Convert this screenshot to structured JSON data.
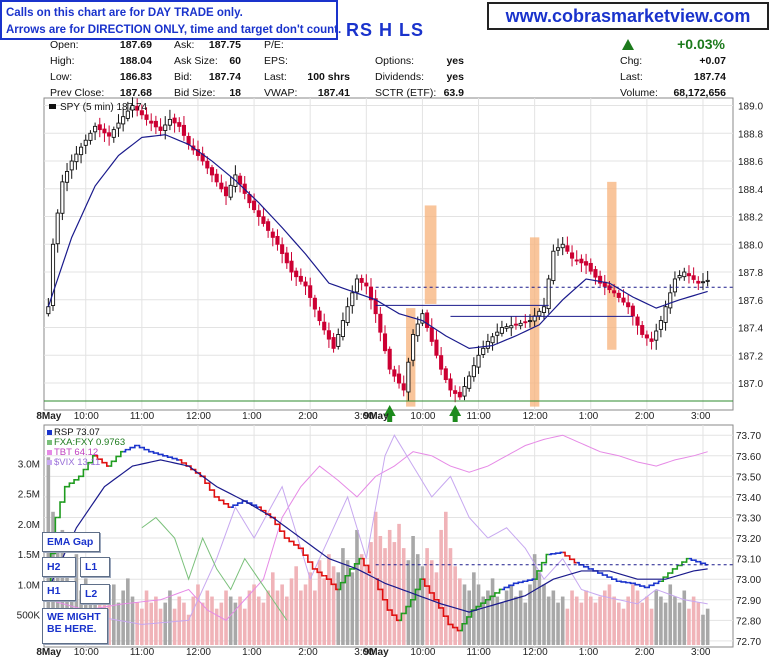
{
  "notes": [
    "Calls on this chart are for DAY TRADE only.",
    "Arrows are for DIRECTION ONLY, time and target don't count."
  ],
  "website": "www.cobrasmarketview.com",
  "symbol_fragment": "RS H LS",
  "quote": {
    "open": "187.69",
    "high": "188.04",
    "low": "186.83",
    "prev_close": "187.68",
    "ask": "187.75",
    "ask_size": "60",
    "bid": "187.74",
    "bid_size": "18",
    "pe": "",
    "eps": "",
    "last_size": "100 shrs",
    "vwap": "187.41",
    "options": "yes",
    "dividends": "yes",
    "sctr": "63.9",
    "change_pct": "+0.03%",
    "chg": "+0.07",
    "last": "187.74",
    "volume": "68,172,656"
  },
  "labels": {
    "open": "Open:",
    "high": "High:",
    "low": "Low:",
    "prev_close": "Prev Close:",
    "ask": "Ask:",
    "ask_size": "Ask Size:",
    "bid": "Bid:",
    "bid_size": "Bid Size:",
    "pe": "P/E:",
    "eps": "EPS:",
    "last": "Last:",
    "vwap": "VWAP:",
    "options": "Options:",
    "dividends": "Dividends:",
    "sctr": "SCTR (ETF):",
    "chg": "Chg:",
    "volume": "Volume:"
  },
  "side_buttons": [
    "EMA Gap",
    "H2",
    "L1",
    "H1",
    "L2",
    "WE MIGHT BE HERE."
  ],
  "colors": {
    "up_candle": "#111111",
    "down_candle": "#cc0033",
    "ema": "#1a1a8c",
    "shade": "#f7b27a",
    "rsp_up": "#1f9c1f",
    "rsp_down": "#e01010",
    "rsp_flat": "#1a33cc",
    "fxa": "#7ac07a",
    "tbt": "#e68ae6",
    "vix": "#c7a8f0",
    "vol_gray": "#a8a8a8",
    "vol_pink": "#f0b3b8",
    "dash": "#1a1a8c",
    "hline": "#1a1a8c"
  },
  "chart_data": [
    {
      "type": "candlestick",
      "title": "SPY (5 min) 187.74",
      "ylim": [
        186.82,
        189.04
      ],
      "yticks": [
        "187.0",
        "187.2",
        "187.4",
        "187.6",
        "187.8",
        "188.0",
        "188.2",
        "188.4",
        "188.6",
        "188.8",
        "189.0"
      ],
      "x_labels": [
        "8May",
        "10:00",
        "11:00",
        "12:00",
        "1:00",
        "2:00",
        "3:00",
        "9May",
        "10:00",
        "11:00",
        "12:00",
        "1:00",
        "2:00",
        "3:00"
      ],
      "reference_line": 187.69,
      "close_path": [
        [
          0,
          187.55
        ],
        [
          1,
          188.0
        ],
        [
          3,
          188.45
        ],
        [
          5,
          188.6
        ],
        [
          7,
          188.7
        ],
        [
          10,
          188.85
        ],
        [
          13,
          188.78
        ],
        [
          16,
          188.92
        ],
        [
          18,
          189.0
        ],
        [
          21,
          188.9
        ],
        [
          24,
          188.82
        ],
        [
          26,
          188.9
        ],
        [
          28,
          188.85
        ],
        [
          30,
          188.72
        ],
        [
          33,
          188.6
        ],
        [
          36,
          188.45
        ],
        [
          38,
          188.35
        ],
        [
          40,
          188.5
        ],
        [
          43,
          188.3
        ],
        [
          46,
          188.15
        ],
        [
          49,
          188.0
        ],
        [
          52,
          187.8
        ],
        [
          55,
          187.7
        ],
        [
          58,
          187.45
        ],
        [
          61,
          187.25
        ],
        [
          64,
          187.55
        ],
        [
          66,
          187.75
        ],
        [
          68,
          187.7
        ],
        [
          70,
          187.5
        ],
        [
          73,
          187.1
        ],
        [
          76,
          186.95
        ],
        [
          78,
          187.35
        ],
        [
          80,
          187.5
        ],
        [
          82,
          187.3
        ],
        [
          84,
          187.1
        ],
        [
          86,
          186.95
        ],
        [
          88,
          186.9
        ],
        [
          90,
          187.05
        ],
        [
          92,
          187.2
        ],
        [
          94,
          187.3
        ],
        [
          97,
          187.4
        ],
        [
          100,
          187.42
        ],
        [
          103,
          187.45
        ],
        [
          106,
          187.55
        ],
        [
          108,
          187.95
        ],
        [
          110,
          188.0
        ],
        [
          112,
          187.9
        ],
        [
          115,
          187.85
        ],
        [
          118,
          187.72
        ],
        [
          121,
          187.65
        ],
        [
          124,
          187.55
        ],
        [
          127,
          187.35
        ],
        [
          129,
          187.3
        ],
        [
          131,
          187.45
        ],
        [
          134,
          187.75
        ],
        [
          136,
          187.8
        ],
        [
          139,
          187.72
        ],
        [
          141,
          187.74
        ]
      ],
      "ema": [
        [
          0,
          187.55
        ],
        [
          5,
          188.05
        ],
        [
          10,
          188.42
        ],
        [
          15,
          188.64
        ],
        [
          20,
          188.77
        ],
        [
          25,
          188.79
        ],
        [
          30,
          188.72
        ],
        [
          35,
          188.6
        ],
        [
          40,
          188.46
        ],
        [
          45,
          188.3
        ],
        [
          50,
          188.12
        ],
        [
          55,
          187.93
        ],
        [
          60,
          187.72
        ],
        [
          65,
          187.66
        ],
        [
          70,
          187.6
        ],
        [
          75,
          187.5
        ],
        [
          80,
          187.45
        ],
        [
          85,
          187.34
        ],
        [
          90,
          187.25
        ],
        [
          95,
          187.27
        ],
        [
          100,
          187.34
        ],
        [
          105,
          187.42
        ],
        [
          110,
          187.6
        ],
        [
          115,
          187.75
        ],
        [
          120,
          187.72
        ],
        [
          125,
          187.62
        ],
        [
          130,
          187.54
        ],
        [
          135,
          187.6
        ],
        [
          141,
          187.66
        ]
      ],
      "shaded_zones": [
        [
          76.5,
          78.5,
          186.83,
          187.54
        ],
        [
          80.5,
          83,
          187.57,
          188.28
        ],
        [
          103,
          105,
          186.83,
          188.05
        ],
        [
          119.5,
          121.5,
          187.24,
          188.45
        ]
      ],
      "horizontal_lines": [
        [
          70,
          107,
          187.56
        ],
        [
          86,
          125,
          187.48
        ]
      ],
      "arrows": [
        73,
        87
      ]
    },
    {
      "type": "line",
      "title": "RSP 73.07",
      "legend": [
        "FXA:FXY 0.9763",
        "TBT 64.12",
        "$VIX 13.11"
      ],
      "ylim": [
        72.68,
        73.74
      ],
      "yticks": [
        "72.70",
        "72.80",
        "72.90",
        "73.00",
        "73.10",
        "73.20",
        "73.30",
        "73.40",
        "73.50",
        "73.60",
        "73.70"
      ],
      "volume_ticks": [
        "500K",
        "1.0M",
        "1.5M",
        "2.0M",
        "2.5M",
        "3.0M"
      ],
      "volume_max": 3.6,
      "reference_line": 73.07,
      "rsp_path": [
        [
          0,
          72.95
        ],
        [
          2,
          73.3
        ],
        [
          4,
          73.45
        ],
        [
          7,
          73.5
        ],
        [
          10,
          73.6
        ],
        [
          13,
          73.55
        ],
        [
          16,
          73.62
        ],
        [
          19,
          73.65
        ],
        [
          22,
          73.62
        ],
        [
          25,
          73.6
        ],
        [
          28,
          73.58
        ],
        [
          30,
          73.55
        ],
        [
          33,
          73.5
        ],
        [
          36,
          73.4
        ],
        [
          39,
          73.35
        ],
        [
          42,
          73.38
        ],
        [
          45,
          73.35
        ],
        [
          48,
          73.3
        ],
        [
          51,
          73.2
        ],
        [
          54,
          73.15
        ],
        [
          57,
          73.05
        ],
        [
          60,
          73.0
        ],
        [
          62,
          72.95
        ],
        [
          65,
          73.05
        ],
        [
          67,
          73.1
        ],
        [
          70,
          73.0
        ],
        [
          73,
          72.85
        ],
        [
          75,
          72.8
        ],
        [
          78,
          72.9
        ],
        [
          80,
          73.0
        ],
        [
          83,
          72.9
        ],
        [
          86,
          72.78
        ],
        [
          88,
          72.75
        ],
        [
          91,
          72.85
        ],
        [
          94,
          72.9
        ],
        [
          97,
          72.95
        ],
        [
          100,
          72.98
        ],
        [
          104,
          73.0
        ],
        [
          107,
          73.12
        ],
        [
          110,
          73.13
        ],
        [
          113,
          73.08
        ],
        [
          116,
          73.05
        ],
        [
          119,
          73.02
        ],
        [
          122,
          72.99
        ],
        [
          125,
          72.98
        ],
        [
          128,
          72.96
        ],
        [
          131,
          72.99
        ],
        [
          134,
          73.05
        ],
        [
          137,
          73.1
        ],
        [
          141,
          73.07
        ]
      ],
      "ema": [
        [
          0,
          72.95
        ],
        [
          6,
          73.25
        ],
        [
          12,
          73.45
        ],
        [
          18,
          73.55
        ],
        [
          24,
          73.58
        ],
        [
          30,
          73.55
        ],
        [
          36,
          73.45
        ],
        [
          42,
          73.38
        ],
        [
          48,
          73.3
        ],
        [
          54,
          73.2
        ],
        [
          60,
          73.1
        ],
        [
          66,
          73.05
        ],
        [
          72,
          72.98
        ],
        [
          78,
          72.93
        ],
        [
          84,
          72.88
        ],
        [
          90,
          72.84
        ],
        [
          96,
          72.88
        ],
        [
          102,
          72.92
        ],
        [
          108,
          73.0
        ],
        [
          114,
          73.04
        ],
        [
          120,
          73.04
        ],
        [
          126,
          73.0
        ],
        [
          132,
          73.0
        ],
        [
          138,
          73.04
        ],
        [
          141,
          73.05
        ]
      ],
      "fxa_path": [
        [
          20,
          73.25
        ],
        [
          23,
          73.3
        ],
        [
          27,
          73.2
        ],
        [
          30,
          73.0
        ],
        [
          33,
          73.2
        ],
        [
          36,
          73.05
        ],
        [
          39,
          72.95
        ],
        [
          42,
          73.1
        ],
        [
          45,
          73.0
        ],
        [
          48,
          72.9
        ],
        [
          51,
          72.8
        ]
      ],
      "tbt_path": [
        [
          0,
          72.9
        ],
        [
          8,
          72.85
        ],
        [
          16,
          72.88
        ],
        [
          24,
          72.9
        ],
        [
          30,
          72.95
        ],
        [
          34,
          72.85
        ],
        [
          38,
          72.8
        ],
        [
          42,
          72.9
        ],
        [
          46,
          73.0
        ],
        [
          50,
          73.3
        ],
        [
          54,
          73.45
        ],
        [
          58,
          73.55
        ],
        [
          62,
          73.48
        ],
        [
          66,
          73.4
        ],
        [
          70,
          73.5
        ],
        [
          74,
          73.55
        ],
        [
          78,
          73.62
        ],
        [
          82,
          73.6
        ],
        [
          86,
          73.55
        ],
        [
          90,
          73.52
        ],
        [
          94,
          73.55
        ],
        [
          98,
          73.6
        ],
        [
          102,
          73.65
        ],
        [
          106,
          73.68
        ],
        [
          110,
          73.7
        ],
        [
          114,
          73.66
        ],
        [
          118,
          73.62
        ],
        [
          122,
          73.6
        ],
        [
          126,
          73.57
        ],
        [
          130,
          73.55
        ],
        [
          134,
          73.58
        ],
        [
          138,
          73.6
        ],
        [
          141,
          73.62
        ]
      ],
      "vix_path": [
        [
          0,
          72.8
        ],
        [
          10,
          72.82
        ],
        [
          20,
          72.78
        ],
        [
          30,
          72.8
        ],
        [
          36,
          73.1
        ],
        [
          40,
          73.35
        ],
        [
          44,
          73.2
        ],
        [
          50,
          73.45
        ],
        [
          56,
          73.0
        ],
        [
          60,
          73.2
        ],
        [
          64,
          73.4
        ],
        [
          68,
          73.1
        ],
        [
          72,
          73.6
        ],
        [
          74,
          73.7
        ],
        [
          78,
          73.55
        ],
        [
          82,
          73.4
        ],
        [
          86,
          73.5
        ],
        [
          90,
          73.3
        ],
        [
          94,
          73.2
        ],
        [
          98,
          73.25
        ],
        [
          102,
          73.15
        ],
        [
          106,
          73.0
        ],
        [
          110,
          73.1
        ],
        [
          114,
          72.95
        ],
        [
          118,
          72.92
        ],
        [
          122,
          72.9
        ],
        [
          126,
          72.88
        ],
        [
          130,
          72.95
        ],
        [
          136,
          72.9
        ],
        [
          141,
          72.88
        ]
      ],
      "volume": [
        3.1,
        2.2,
        1.6,
        1.9,
        1.2,
        1.0,
        1.5,
        0.9,
        1.1,
        1.0,
        0.8,
        0.9,
        0.7,
        0.8,
        1.0,
        0.7,
        0.9,
        1.1,
        0.8,
        0.7,
        0.6,
        0.9,
        0.7,
        0.8,
        0.6,
        0.7,
        0.9,
        0.6,
        0.8,
        0.7,
        0.5,
        0.8,
        1.0,
        0.7,
        0.9,
        0.8,
        0.6,
        0.7,
        0.9,
        0.8,
        0.7,
        0.8,
        0.6,
        0.9,
        1.0,
        0.8,
        0.7,
        0.9,
        1.2,
        0.9,
        1.0,
        0.8,
        1.1,
        1.3,
        0.9,
        1.0,
        1.2,
        0.9,
        1.4,
        1.1,
        1.5,
        1.3,
        1.2,
        1.6,
        1.4,
        1.2,
        1.9,
        1.5,
        1.3,
        1.7,
        2.2,
        1.8,
        1.6,
        1.9,
        1.7,
        2.0,
        1.6,
        1.4,
        1.8,
        1.5,
        1.3,
        1.6,
        1.4,
        1.2,
        1.9,
        2.2,
        1.6,
        1.3,
        1.1,
        1.0,
        0.9,
        1.2,
        1.0,
        0.8,
        0.9,
        1.1,
        0.8,
        0.7,
        0.9,
        1.0,
        0.8,
        0.9,
        0.7,
        1.0,
        1.5,
        1.2,
        1.0,
        0.8,
        0.9,
        0.7,
        0.8,
        0.6,
        0.9,
        0.8,
        0.7,
        0.9,
        0.8,
        0.7,
        0.8,
        0.9,
        1.0,
        0.8,
        0.7,
        0.6,
        0.8,
        1.0,
        0.9,
        0.7,
        0.8,
        0.6,
        0.9,
        0.8,
        0.7,
        1.0,
        0.8,
        0.7,
        0.9,
        0.6,
        0.8,
        0.7,
        0.5,
        0.6
      ]
    }
  ]
}
